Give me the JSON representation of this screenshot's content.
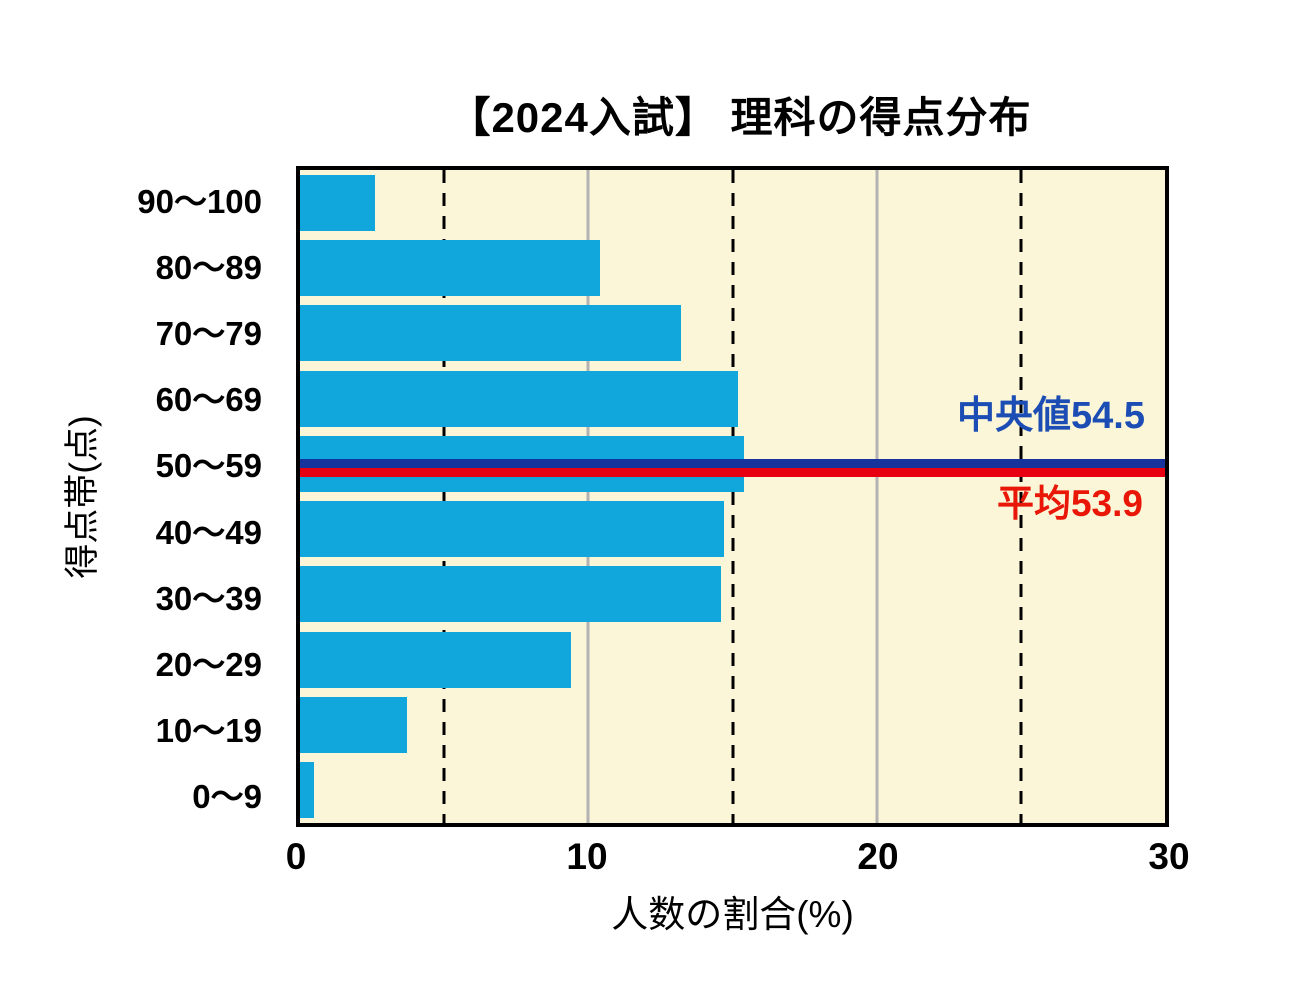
{
  "title": "【2024入試】 理科の得点分布",
  "chart_data": {
    "type": "bar",
    "orientation": "horizontal",
    "title": "【2024入試】 理科の得点分布",
    "categories": [
      "90〜100",
      "80〜89",
      "70〜79",
      "60〜69",
      "50〜59",
      "40〜49",
      "30〜39",
      "20〜29",
      "10〜19",
      "0〜9"
    ],
    "values": [
      2.6,
      10.4,
      13.2,
      15.2,
      15.4,
      14.7,
      14.6,
      9.4,
      3.7,
      0.5
    ],
    "xlabel": "人数の割合(%)",
    "ylabel": "得点帯(点)",
    "xlim": [
      0,
      30
    ],
    "xticks": [
      "0",
      "10",
      "20",
      "30"
    ],
    "xtick_values": [
      0,
      10,
      20,
      30
    ],
    "gridlines": {
      "solid_at": [
        10,
        20
      ],
      "dashed_at": [
        5,
        15,
        25
      ]
    },
    "legend_position": "none",
    "annotations": [
      {
        "id": "median",
        "label": "中央値54.5",
        "value": 54.5,
        "text_color": "#1b4db4",
        "line_color": "#17349c"
      },
      {
        "id": "mean",
        "label": "平均53.9",
        "value": 53.9,
        "text_color": "#e91708",
        "line_color": "#e60012"
      }
    ],
    "colors": {
      "bar": "#12a7dc",
      "plot_background": "#fbf6d8",
      "solid_grid": "#b3b3b3",
      "dashed_grid": "#000000",
      "axis": "#000000",
      "text": "#000000"
    }
  }
}
